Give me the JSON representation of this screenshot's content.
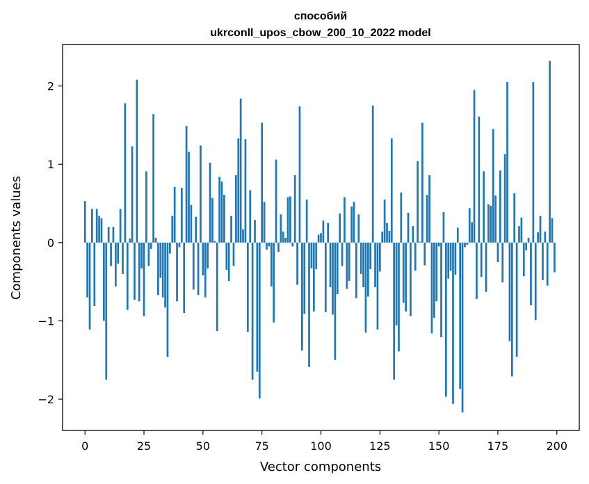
{
  "chart_data": {
    "type": "bar",
    "title_line1": "способий",
    "title_line2": "ukrconll_upos_cbow_200_10_2022 model",
    "xlabel": "Vector components",
    "ylabel": "Components values",
    "xlim": [
      -9.5,
      209.5
    ],
    "ylim": [
      -2.4,
      2.53
    ],
    "xticks": [
      0,
      25,
      50,
      75,
      100,
      125,
      150,
      175,
      200
    ],
    "xtick_labels": [
      "0",
      "25",
      "50",
      "75",
      "100",
      "125",
      "150",
      "175",
      "200"
    ],
    "yticks": [
      -2,
      -1,
      0,
      1,
      2
    ],
    "ytick_labels": [
      "−2",
      "−1",
      "0",
      "1",
      "2"
    ],
    "bar_color": "#1f77b4",
    "grid": false,
    "values": [
      0.53,
      -0.7,
      -1.11,
      0.43,
      -0.81,
      0.43,
      0.34,
      0.31,
      -1.0,
      -1.75,
      0.2,
      -0.3,
      0.2,
      -0.56,
      -0.27,
      0.43,
      -0.4,
      1.78,
      -0.86,
      0.05,
      1.23,
      -0.73,
      2.08,
      -0.75,
      -0.33,
      -0.94,
      0.91,
      -0.3,
      -0.08,
      1.64,
      0.06,
      -0.67,
      -0.45,
      -0.7,
      -0.83,
      -1.46,
      -0.14,
      0.34,
      0.71,
      -0.75,
      -0.06,
      0.7,
      -0.9,
      1.49,
      1.16,
      0.48,
      -0.6,
      0.33,
      -0.67,
      1.24,
      -0.42,
      -0.7,
      -0.33,
      1.02,
      0.57,
      0.02,
      -1.13,
      0.84,
      0.78,
      0.61,
      -0.35,
      -0.49,
      0.34,
      -0.3,
      0.86,
      1.33,
      1.84,
      0.17,
      1.32,
      -1.14,
      0.67,
      -1.75,
      0.29,
      -1.65,
      -1.99,
      1.53,
      0.52,
      -0.09,
      -0.05,
      -0.56,
      -1.02,
      1.06,
      -0.12,
      0.36,
      0.14,
      0.06,
      0.58,
      0.59,
      -0.05,
      0.86,
      -0.54,
      1.74,
      -1.38,
      -0.91,
      0.55,
      -1.59,
      -0.33,
      -0.88,
      -0.34,
      0.1,
      0.12,
      0.28,
      -0.89,
      0.25,
      -0.57,
      -0.92,
      -1.5,
      -0.66,
      0.37,
      -0.3,
      0.58,
      -0.59,
      -0.49,
      0.46,
      0.52,
      -0.71,
      0.36,
      -0.4,
      -0.57,
      -1.15,
      -0.69,
      -0.34,
      1.75,
      -0.57,
      -1.11,
      -0.37,
      0.14,
      0.55,
      0.25,
      0.15,
      1.33,
      -1.75,
      -1.06,
      -1.39,
      0.64,
      -0.77,
      -0.88,
      0.38,
      -0.94,
      0.21,
      -0.36,
      1.04,
      0.01,
      1.53,
      -0.29,
      0.61,
      0.86,
      -1.16,
      -0.96,
      -0.75,
      -0.05,
      -1.21,
      0.39,
      -1.97,
      -0.46,
      -0.36,
      -2.06,
      -0.41,
      0.19,
      -1.87,
      -2.17,
      -0.06,
      -0.03,
      0.44,
      0.26,
      1.95,
      -0.72,
      1.61,
      -0.44,
      0.91,
      -0.63,
      0.49,
      0.47,
      1.45,
      0.6,
      -0.25,
      0.92,
      -0.51,
      1.13,
      2.05,
      -1.26,
      -1.71,
      0.63,
      -1.46,
      0.21,
      0.32,
      -0.43,
      -0.1,
      0.06,
      -0.8,
      2.05,
      -0.99,
      0.13,
      0.34,
      -0.48,
      0.14,
      -0.55,
      2.32,
      0.31,
      -0.38
    ]
  }
}
